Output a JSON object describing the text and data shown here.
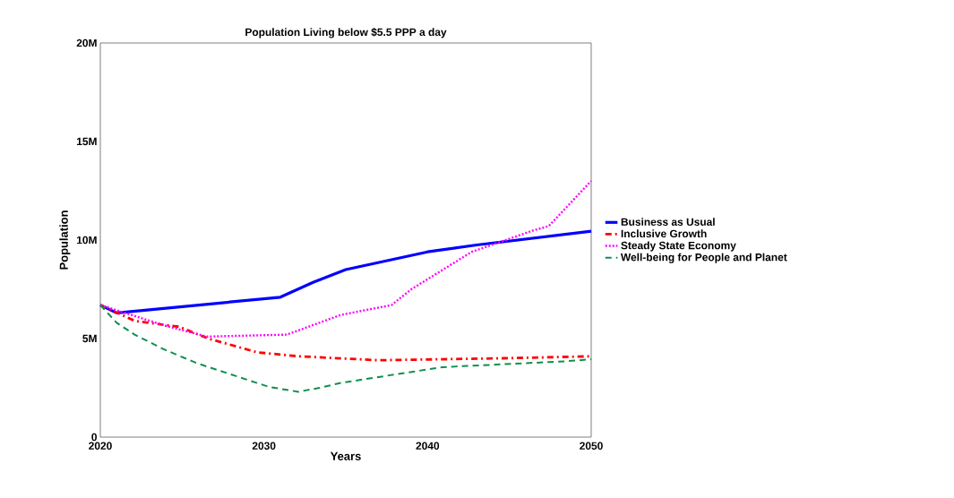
{
  "chart_data": {
    "type": "line",
    "title": "Population Living below $5.5 PPP a day",
    "xlabel": "Years",
    "ylabel": "Population",
    "xlim": [
      2020,
      2050
    ],
    "xticks": [
      2020,
      2030,
      2040,
      2050
    ],
    "ylim": [
      0,
      20
    ],
    "yticks": [
      0,
      {
        "value": 5,
        "label": "5M"
      },
      {
        "value": 10,
        "label": "10M"
      },
      {
        "value": 15,
        "label": "15M"
      },
      {
        "value": 20,
        "label": "20M"
      }
    ],
    "grid": false,
    "legend": "right",
    "marker": "none",
    "series": [
      {
        "name": "Business as Usual",
        "color": "#0000ff",
        "line_style": "solid",
        "x": [
          2020,
          2021,
          2031,
          2033,
          2035,
          2040,
          2043,
          2050
        ],
        "values": [
          6.7,
          6.3,
          7.1,
          7.85,
          8.5,
          9.4,
          9.75,
          10.45
        ]
      },
      {
        "name": "Inclusive Growth",
        "color": "#ff0000",
        "line_style": "dashdot",
        "x": [
          2020,
          2022.1,
          2024.8,
          2026.6,
          2029.6,
          2032.1,
          2035.8,
          2037,
          2044.6,
          2050
        ],
        "values": [
          6.7,
          5.9,
          5.6,
          5.0,
          4.3,
          4.1,
          3.95,
          3.9,
          4.0,
          4.1
        ]
      },
      {
        "name": "Steady State Economy",
        "color": "#ff00ff",
        "line_style": "dotted",
        "x": [
          2020,
          2023.9,
          2026.5,
          2031.4,
          2034.7,
          2037.8,
          2039,
          2042.7,
          2046.5,
          2047.4,
          2050
        ],
        "values": [
          6.7,
          5.67,
          5.1,
          5.2,
          6.2,
          6.7,
          7.5,
          9.4,
          10.5,
          10.7,
          13.0
        ]
      },
      {
        "name": "Well-being for People and Planet",
        "color": "#0f8f4f",
        "line_style": "dashed",
        "x": [
          2020,
          2021,
          2022.1,
          2023.9,
          2025.9,
          2030.3,
          2032.1,
          2033.4,
          2034.7,
          2040.9,
          2048.5,
          2050
        ],
        "values": [
          6.7,
          5.8,
          5.2,
          4.45,
          3.75,
          2.55,
          2.3,
          2.5,
          2.75,
          3.55,
          3.85,
          3.95
        ]
      }
    ]
  }
}
